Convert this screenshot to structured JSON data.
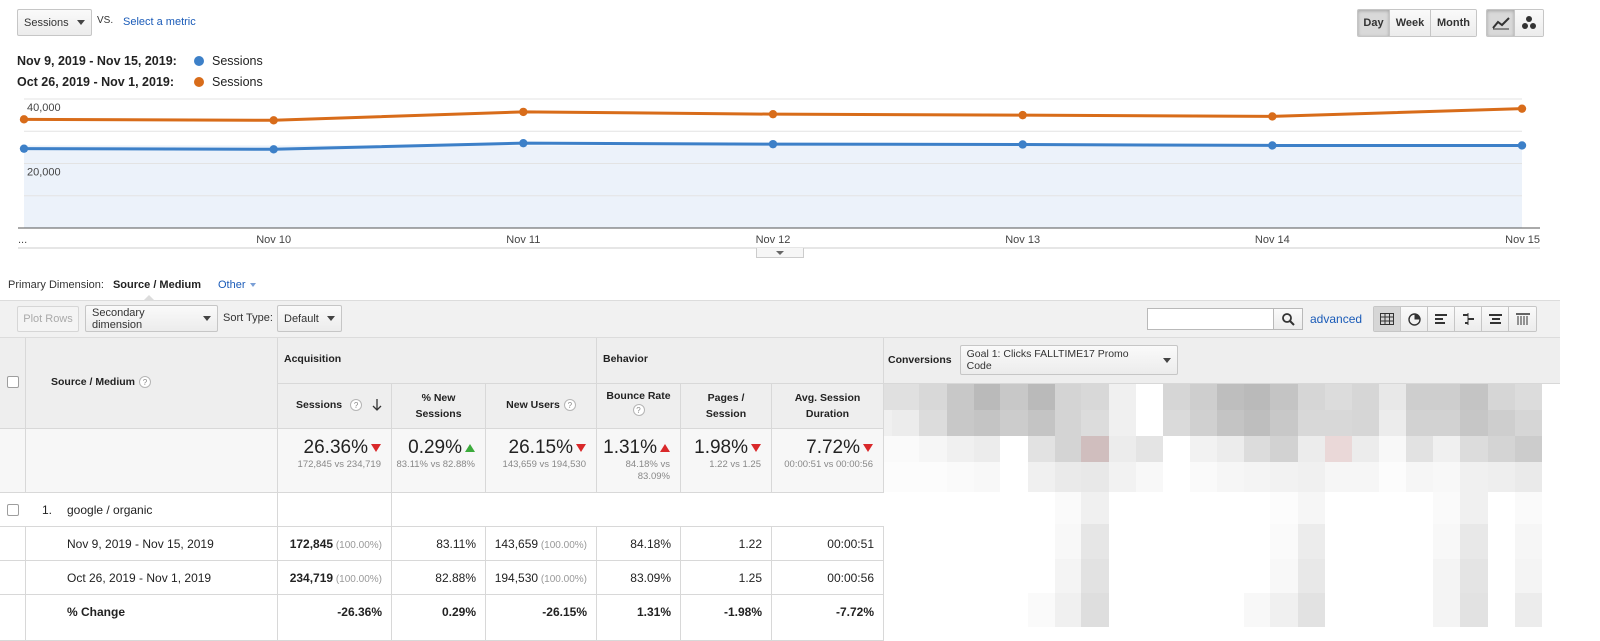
{
  "controls": {
    "metric_select": "Sessions",
    "vs_label": "VS.",
    "select_metric_link": "Select a metric",
    "period_buttons": [
      "Day",
      "Week",
      "Month"
    ],
    "active_period": "Day"
  },
  "legend": [
    {
      "range": "Nov 9, 2019 - Nov 15, 2019:",
      "metric": "Sessions",
      "color": "#3d80c8"
    },
    {
      "range": "Oct 26, 2019 - Nov 1, 2019:",
      "metric": "Sessions",
      "color": "#d86c1a"
    }
  ],
  "chart_data": {
    "type": "line",
    "x": [
      "...",
      "Nov 10",
      "Nov 11",
      "Nov 12",
      "Nov 13",
      "Nov 14",
      "Nov 15"
    ],
    "y_tick_labels": [
      "40,000",
      "20,000"
    ],
    "series": [
      {
        "name": "Sessions",
        "period": "Nov 9, 2019 - Nov 15, 2019",
        "color": "#3d80c8",
        "values": [
          24600,
          24400,
          26300,
          26000,
          25900,
          25600,
          25600
        ]
      },
      {
        "name": "Sessions",
        "period": "Oct 26, 2019 - Nov 1, 2019",
        "color": "#d86c1a",
        "values": [
          33700,
          33400,
          36000,
          35300,
          35000,
          34600,
          37000
        ]
      }
    ],
    "ylim": [
      0,
      40000
    ],
    "grid": true
  },
  "dimension_bar": {
    "label": "Primary Dimension:",
    "active": "Source / Medium",
    "other": "Other"
  },
  "toolbar": {
    "plot_rows": "Plot Rows",
    "secondary_dimension": "Secondary dimension",
    "sort_type_label": "Sort Type:",
    "sort_type_value": "Default",
    "advanced": "advanced"
  },
  "table": {
    "source_medium_header": "Source / Medium",
    "acquisition": "Acquisition",
    "behavior": "Behavior",
    "conversions": "Conversions",
    "goal_select": "Goal 1: Clicks FALLTIME17 Promo Code",
    "columns": [
      {
        "label": "Sessions",
        "sort": true
      },
      {
        "label": "% New Sessions"
      },
      {
        "label": "New Users"
      },
      {
        "label": "Bounce Rate"
      },
      {
        "label": "Pages / Session"
      },
      {
        "label": "Avg. Session Duration"
      }
    ],
    "summary": [
      {
        "value": "26.36%",
        "dir": "down",
        "sub": "172,845 vs 234,719"
      },
      {
        "value": "0.29%",
        "dir": "up-green",
        "sub": "83.11% vs 82.88%"
      },
      {
        "value": "26.15%",
        "dir": "down",
        "sub": "143,659 vs 194,530"
      },
      {
        "value": "1.31%",
        "dir": "up",
        "sub": "84.18% vs 83.09%"
      },
      {
        "value": "1.98%",
        "dir": "down",
        "sub": "1.22 vs 1.25"
      },
      {
        "value": "7.72%",
        "dir": "down",
        "sub": "00:00:51 vs 00:00:56"
      }
    ],
    "row1": {
      "index": "1.",
      "name": "google / organic"
    },
    "period_rows": [
      {
        "label": "Nov 9, 2019 - Nov 15, 2019",
        "sessions": "172,845",
        "sessions_pct": "(100.00%)",
        "new_sessions": "83.11%",
        "new_users": "143,659",
        "new_users_pct": "(100.00%)",
        "bounce": "84.18%",
        "pages": "1.22",
        "duration": "00:00:51"
      },
      {
        "label": "Oct 26, 2019 - Nov 1, 2019",
        "sessions": "234,719",
        "sessions_pct": "(100.00%)",
        "new_sessions": "82.88%",
        "new_users": "194,530",
        "new_users_pct": "(100.00%)",
        "bounce": "83.09%",
        "pages": "1.25",
        "duration": "00:00:56"
      }
    ],
    "change_row": {
      "label": "% Change",
      "sessions": "-26.36%",
      "new_sessions": "0.29%",
      "new_users": "-26.15%",
      "bounce": "1.31%",
      "pages": "-1.98%",
      "duration": "-7.72%"
    }
  }
}
